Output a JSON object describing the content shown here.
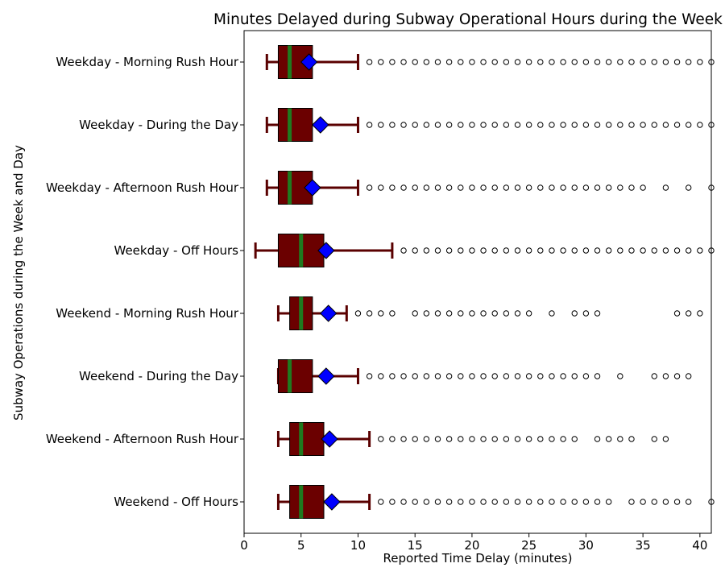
{
  "chart_data": {
    "type": "boxplot",
    "orientation": "horizontal",
    "title": "Minutes Delayed during Subway Operational Hours during the Week",
    "xlabel": "Reported Time Delay (minutes)",
    "ylabel": "Subway Operations during the Week and Day",
    "xlim": [
      0,
      41
    ],
    "xticks": [
      0,
      5,
      10,
      15,
      20,
      25,
      30,
      35,
      40
    ],
    "grid": false,
    "colors": {
      "box": "#6b0000",
      "whisker": "#5a0000",
      "median": "#1f7a1f",
      "mean": "#0000ff",
      "outlier_edge": "#000000"
    },
    "categories": [
      "Weekday - Morning Rush Hour",
      "Weekday - During the Day",
      "Weekday - Afternoon Rush Hour",
      "Weekday - Off Hours",
      "Weekend - Morning Rush Hour",
      "Weekend - During the Day",
      "Weekend - Afternoon Rush Hour",
      "Weekend - Off Hours"
    ],
    "series": [
      {
        "whisker_low": 2,
        "q1": 3,
        "median": 4,
        "q3": 6,
        "whisker_high": 10,
        "mean": 5.7,
        "outliers": [
          11,
          12,
          13,
          14,
          15,
          16,
          17,
          18,
          19,
          20,
          21,
          22,
          23,
          24,
          25,
          26,
          27,
          28,
          29,
          30,
          31,
          32,
          33,
          34,
          35,
          36,
          37,
          38,
          39,
          40,
          41
        ]
      },
      {
        "whisker_low": 2,
        "q1": 3,
        "median": 4,
        "q3": 6,
        "whisker_high": 10,
        "mean": 6.7,
        "outliers": [
          11,
          12,
          13,
          14,
          15,
          16,
          17,
          18,
          19,
          20,
          21,
          22,
          23,
          24,
          25,
          26,
          27,
          28,
          29,
          30,
          31,
          32,
          33,
          34,
          35,
          36,
          37,
          38,
          39,
          40,
          41
        ]
      },
      {
        "whisker_low": 2,
        "q1": 3,
        "median": 4,
        "q3": 6,
        "whisker_high": 10,
        "mean": 6.0,
        "outliers": [
          11,
          12,
          13,
          14,
          15,
          16,
          17,
          18,
          19,
          20,
          21,
          22,
          23,
          24,
          25,
          26,
          27,
          28,
          29,
          30,
          31,
          32,
          33,
          34,
          35,
          37,
          39,
          41
        ]
      },
      {
        "whisker_low": 1,
        "q1": 3,
        "median": 5,
        "q3": 7,
        "whisker_high": 13,
        "mean": 7.2,
        "outliers": [
          14,
          15,
          16,
          17,
          18,
          19,
          20,
          21,
          22,
          23,
          24,
          25,
          26,
          27,
          28,
          29,
          30,
          31,
          32,
          33,
          34,
          35,
          36,
          37,
          38,
          39,
          40,
          41
        ]
      },
      {
        "whisker_low": 3,
        "q1": 4,
        "median": 5,
        "q3": 6,
        "whisker_high": 9,
        "mean": 7.4,
        "outliers": [
          10,
          11,
          12,
          13,
          15,
          16,
          17,
          18,
          19,
          20,
          21,
          22,
          23,
          24,
          25,
          27,
          29,
          30,
          31,
          38,
          39,
          40
        ]
      },
      {
        "whisker_low": 3,
        "q1": 3,
        "median": 4,
        "q3": 6,
        "whisker_high": 10,
        "mean": 7.2,
        "outliers": [
          11,
          12,
          13,
          14,
          15,
          16,
          17,
          18,
          19,
          20,
          21,
          22,
          23,
          24,
          25,
          26,
          27,
          28,
          29,
          30,
          31,
          33,
          36,
          37,
          38,
          39
        ]
      },
      {
        "whisker_low": 3,
        "q1": 4,
        "median": 5,
        "q3": 7,
        "whisker_high": 11,
        "mean": 7.5,
        "outliers": [
          12,
          13,
          14,
          15,
          16,
          17,
          18,
          19,
          20,
          21,
          22,
          23,
          24,
          25,
          26,
          27,
          28,
          29,
          31,
          32,
          33,
          34,
          36,
          37
        ]
      },
      {
        "whisker_low": 3,
        "q1": 4,
        "median": 5,
        "q3": 7,
        "whisker_high": 11,
        "mean": 7.7,
        "outliers": [
          12,
          13,
          14,
          15,
          16,
          17,
          18,
          19,
          20,
          21,
          22,
          23,
          24,
          25,
          26,
          27,
          28,
          29,
          30,
          31,
          32,
          34,
          35,
          36,
          37,
          38,
          39,
          41
        ]
      }
    ]
  }
}
